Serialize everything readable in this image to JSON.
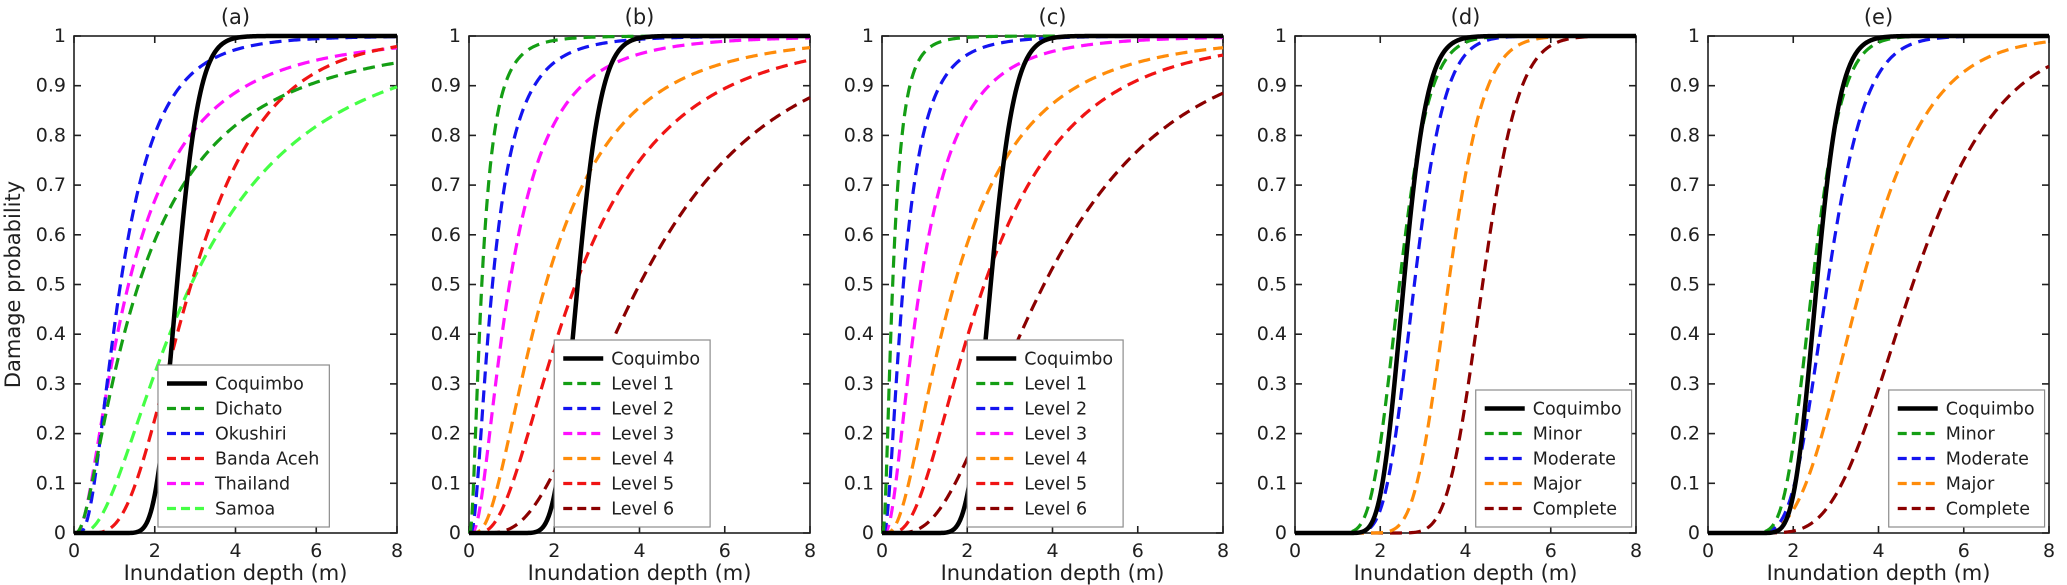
{
  "figure": {
    "xlabel": "Inundation depth (m)",
    "ylabel": "Damage probability",
    "xlim": [
      0,
      8
    ],
    "ylim": [
      0,
      1
    ],
    "xticks": [
      0,
      2,
      4,
      6,
      8
    ],
    "yticks": [
      0,
      0.1,
      0.2,
      0.3,
      0.4,
      0.5,
      0.6,
      0.7,
      0.8,
      0.9,
      1
    ],
    "axis_color": "#202020",
    "legend_border_color": "#8c8c8c",
    "grid": false
  },
  "chart_data": [
    {
      "type": "line",
      "title": "(a)",
      "xlabel": "Inundation depth (m)",
      "ylabel": "Damage probability",
      "xlim": [
        0,
        8
      ],
      "ylim": [
        0,
        1
      ],
      "xticks": [
        0,
        2,
        4,
        6,
        8
      ],
      "yticks": [
        0,
        0.1,
        0.2,
        0.3,
        0.4,
        0.5,
        0.6,
        0.7,
        0.8,
        0.9,
        1
      ],
      "model": "lognormal_cdf",
      "legend": {
        "position": "bottom",
        "x_frac": 0.26
      },
      "series": [
        {
          "name": "Coquimbo",
          "color": "#000000",
          "dash": "solid",
          "median": 2.55,
          "beta": 0.17
        },
        {
          "name": "Dichato",
          "color": "#149e14",
          "dash": "dashed",
          "median": 1.6,
          "beta": 1.0
        },
        {
          "name": "Okushiri",
          "color": "#1414f0",
          "dash": "dashed",
          "median": 1.15,
          "beta": 0.65
        },
        {
          "name": "Banda Aceh",
          "color": "#f01414",
          "dash": "dashed",
          "median": 2.9,
          "beta": 0.5
        },
        {
          "name": "Thailand",
          "color": "#ff10ff",
          "dash": "dashed",
          "median": 1.35,
          "beta": 0.9
        },
        {
          "name": "Samoa",
          "color": "#45ff45",
          "dash": "dashed",
          "median": 2.9,
          "beta": 0.8
        }
      ]
    },
    {
      "type": "line",
      "title": "(b)",
      "xlabel": "Inundation depth (m)",
      "ylabel": "",
      "xlim": [
        0,
        8
      ],
      "ylim": [
        0,
        1
      ],
      "xticks": [
        0,
        2,
        4,
        6,
        8
      ],
      "yticks": [
        0,
        0.1,
        0.2,
        0.3,
        0.4,
        0.5,
        0.6,
        0.7,
        0.8,
        0.9,
        1
      ],
      "model": "lognormal_cdf",
      "legend": {
        "position": "bottom",
        "x_frac": 0.25
      },
      "series": [
        {
          "name": "Coquimbo",
          "color": "#000000",
          "dash": "solid",
          "median": 2.55,
          "beta": 0.17
        },
        {
          "name": "Level 1",
          "color": "#149e14",
          "dash": "dashed",
          "median": 0.3,
          "beta": 0.8
        },
        {
          "name": "Level 2",
          "color": "#1414f0",
          "dash": "dashed",
          "median": 0.55,
          "beta": 0.8
        },
        {
          "name": "Level 3",
          "color": "#ff10ff",
          "dash": "dashed",
          "median": 0.95,
          "beta": 0.8
        },
        {
          "name": "Level 4",
          "color": "#ff8c0a",
          "dash": "dashed",
          "median": 1.8,
          "beta": 0.75
        },
        {
          "name": "Level 5",
          "color": "#f01414",
          "dash": "dashed",
          "median": 2.5,
          "beta": 0.7
        },
        {
          "name": "Level 6",
          "color": "#8b0000",
          "dash": "dashed",
          "median": 4.0,
          "beta": 0.6
        }
      ]
    },
    {
      "type": "line",
      "title": "(c)",
      "xlabel": "Inundation depth (m)",
      "ylabel": "",
      "xlim": [
        0,
        8
      ],
      "ylim": [
        0,
        1
      ],
      "xticks": [
        0,
        2,
        4,
        6,
        8
      ],
      "yticks": [
        0,
        0.1,
        0.2,
        0.3,
        0.4,
        0.5,
        0.6,
        0.7,
        0.8,
        0.9,
        1
      ],
      "model": "lognormal_cdf",
      "legend": {
        "position": "bottom",
        "x_frac": 0.25
      },
      "series": [
        {
          "name": "Coquimbo",
          "color": "#000000",
          "dash": "solid",
          "median": 2.55,
          "beta": 0.17
        },
        {
          "name": "Level 1",
          "color": "#149e14",
          "dash": "dashed",
          "median": 0.25,
          "beta": 0.75
        },
        {
          "name": "Level 2",
          "color": "#1414f0",
          "dash": "dashed",
          "median": 0.5,
          "beta": 0.78
        },
        {
          "name": "Level 3",
          "color": "#ff10ff",
          "dash": "dashed",
          "median": 0.9,
          "beta": 0.8
        },
        {
          "name": "Level 4",
          "color": "#ff8c0a",
          "dash": "dashed",
          "median": 1.7,
          "beta": 0.78
        },
        {
          "name": "Level 5",
          "color": "#f01414",
          "dash": "dashed",
          "median": 2.4,
          "beta": 0.68
        },
        {
          "name": "Level 6",
          "color": "#8b0000",
          "dash": "dashed",
          "median": 3.8,
          "beta": 0.62
        }
      ]
    },
    {
      "type": "line",
      "title": "(d)",
      "xlabel": "Inundation depth (m)",
      "ylabel": "",
      "xlim": [
        0,
        8
      ],
      "ylim": [
        0,
        1
      ],
      "xticks": [
        0,
        2,
        4,
        6,
        8
      ],
      "yticks": [
        0,
        0.1,
        0.2,
        0.3,
        0.4,
        0.5,
        0.6,
        0.7,
        0.8,
        0.9,
        1
      ],
      "model": "lognormal_cdf",
      "legend": {
        "position": "bottom",
        "x_frac": 0.53
      },
      "series": [
        {
          "name": "Coquimbo",
          "color": "#000000",
          "dash": "solid",
          "median": 2.55,
          "beta": 0.17
        },
        {
          "name": "Minor",
          "color": "#149e14",
          "dash": "dashed",
          "median": 2.45,
          "beta": 0.22
        },
        {
          "name": "Moderate",
          "color": "#1414f0",
          "dash": "dashed",
          "median": 2.8,
          "beta": 0.2
        },
        {
          "name": "Major",
          "color": "#ff8c0a",
          "dash": "dashed",
          "median": 3.6,
          "beta": 0.18
        },
        {
          "name": "Complete",
          "color": "#8b0000",
          "dash": "dashed",
          "median": 4.4,
          "beta": 0.15
        }
      ]
    },
    {
      "type": "line",
      "title": "(e)",
      "xlabel": "Inundation depth (m)",
      "ylabel": "",
      "xlim": [
        0,
        8
      ],
      "ylim": [
        0,
        1
      ],
      "xticks": [
        0,
        2,
        4,
        6,
        8
      ],
      "yticks": [
        0,
        0.1,
        0.2,
        0.3,
        0.4,
        0.5,
        0.6,
        0.7,
        0.8,
        0.9,
        1
      ],
      "model": "lognormal_cdf",
      "legend": {
        "position": "bottom",
        "x_frac": 0.53
      },
      "series": [
        {
          "name": "Coquimbo",
          "color": "#000000",
          "dash": "solid",
          "median": 2.55,
          "beta": 0.17
        },
        {
          "name": "Minor",
          "color": "#149e14",
          "dash": "dashed",
          "median": 2.45,
          "beta": 0.22
        },
        {
          "name": "Moderate",
          "color": "#1414f0",
          "dash": "dashed",
          "median": 2.8,
          "beta": 0.25
        },
        {
          "name": "Major",
          "color": "#ff8c0a",
          "dash": "dashed",
          "median": 3.6,
          "beta": 0.35
        },
        {
          "name": "Complete",
          "color": "#8b0000",
          "dash": "dashed",
          "median": 4.8,
          "beta": 0.33
        }
      ]
    }
  ]
}
